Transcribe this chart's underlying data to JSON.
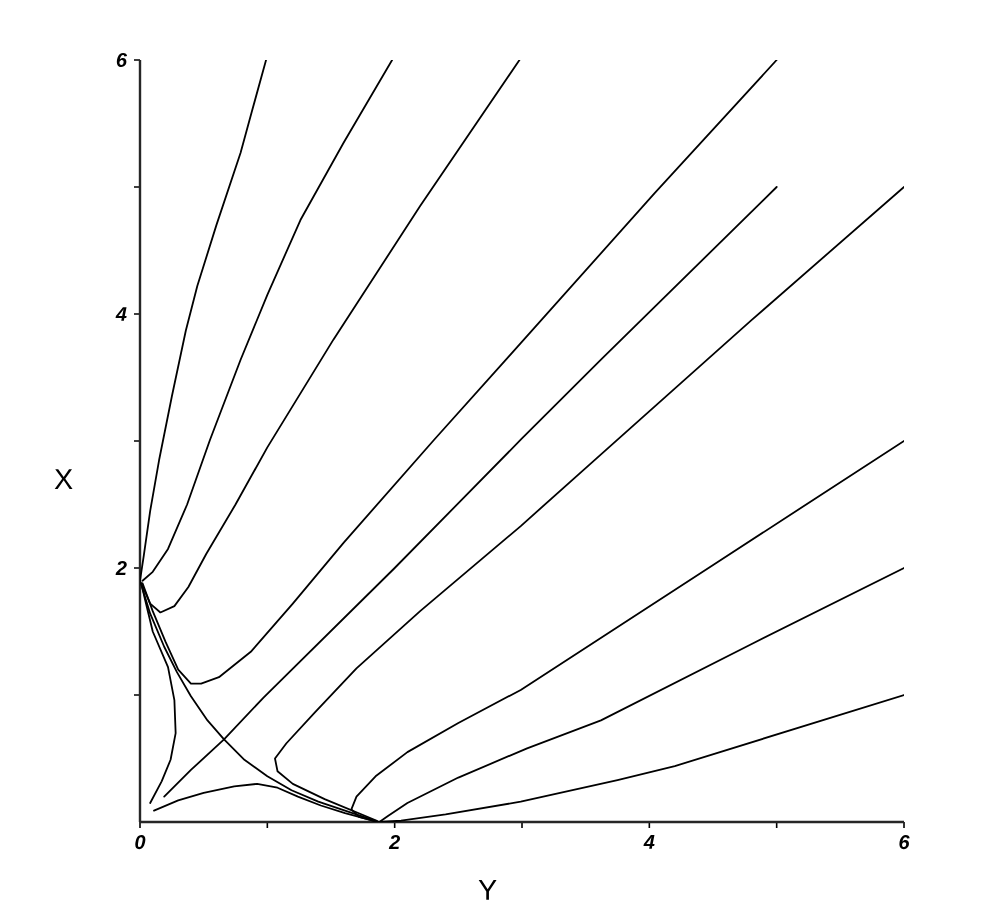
{
  "chart_data": {
    "type": "line",
    "xlabel": "Y",
    "ylabel": "X",
    "xlim": [
      0,
      6
    ],
    "ylim": [
      0,
      6
    ],
    "xticks": [
      0,
      {
        "value": 1,
        "label": null
      },
      2,
      {
        "value": 3,
        "label": null
      },
      4,
      {
        "value": 5,
        "label": null
      },
      6
    ],
    "yticks": [
      {
        "value": 1,
        "label": null
      },
      2,
      {
        "value": 3,
        "label": null
      },
      4,
      {
        "value": 5,
        "label": null
      },
      6
    ],
    "series": [
      {
        "color": "#000000",
        "x": [
          0.99,
          0.88,
          0.79,
          0.6,
          0.45,
          0.36,
          0.25,
          0.15,
          0.08,
          0.03,
          0.0,
          0.08,
          0.19,
          0.29,
          0.4,
          0.53,
          0.66,
          0.82,
          1.0,
          1.19,
          1.4,
          1.61,
          1.88,
          2.05,
          2.4,
          2.99,
          3.75,
          4.2,
          6.0
        ],
        "values": [
          6.0,
          5.6,
          5.27,
          4.7,
          4.22,
          3.87,
          3.35,
          2.85,
          2.45,
          2.1,
          1.9,
          1.64,
          1.38,
          1.18,
          0.99,
          0.8,
          0.65,
          0.49,
          0.36,
          0.25,
          0.16,
          0.09,
          0.0,
          0.01,
          0.06,
          0.16,
          0.33,
          0.44,
          1.0
        ]
      },
      {
        "color": "#000000",
        "x": [
          1.98,
          1.6,
          1.26,
          1.0,
          0.79,
          0.55,
          0.37,
          0.22,
          0.1,
          0.02
        ],
        "values": [
          6.0,
          5.35,
          4.74,
          4.15,
          3.64,
          3.01,
          2.5,
          2.15,
          1.97,
          1.9
        ]
      },
      {
        "color": "#000000",
        "x": [
          2.98,
          2.2,
          1.52,
          1.0,
          0.75,
          0.52,
          0.38,
          0.27,
          0.16,
          0.08,
          0.02
        ],
        "values": [
          6.0,
          4.85,
          3.8,
          2.95,
          2.5,
          2.11,
          1.85,
          1.7,
          1.65,
          1.72,
          1.86
        ]
      },
      {
        "color": "#000000",
        "x": [
          5.0,
          4.04,
          2.99,
          2.31,
          1.6,
          1.2,
          0.87,
          0.62,
          0.48,
          0.4,
          0.3,
          0.2,
          0.1,
          0.02
        ],
        "values": [
          6.0,
          4.95,
          3.77,
          3.01,
          2.2,
          1.72,
          1.34,
          1.14,
          1.09,
          1.09,
          1.2,
          1.42,
          1.66,
          1.88
        ]
      },
      {
        "color": "#000000",
        "x": [
          5.0,
          3.62,
          2.99,
          2.0,
          0.97,
          0.66,
          0.4,
          0.19
        ],
        "values": [
          5.0,
          3.64,
          3.01,
          2.0,
          0.98,
          0.65,
          0.41,
          0.2
        ]
      },
      {
        "color": "#000000",
        "x": [
          0.08,
          0.17,
          0.24,
          0.28,
          0.27,
          0.22,
          0.1,
          0.04,
          0.01
        ],
        "values": [
          0.15,
          0.32,
          0.49,
          0.7,
          0.96,
          1.22,
          1.5,
          1.75,
          1.88
        ]
      },
      {
        "color": "#000000",
        "x": [
          0.11,
          0.3,
          0.5,
          0.74,
          0.92,
          1.08,
          1.24,
          1.42,
          1.61,
          1.87
        ],
        "values": [
          0.09,
          0.17,
          0.23,
          0.28,
          0.3,
          0.27,
          0.2,
          0.13,
          0.07,
          0.0
        ]
      },
      {
        "color": "#000000",
        "x": [
          6.0,
          4.8,
          3.57,
          2.99,
          2.2,
          1.7,
          1.37,
          1.15,
          1.06,
          1.08,
          1.2,
          1.45,
          1.86
        ],
        "values": [
          5.0,
          3.95,
          2.85,
          2.33,
          1.66,
          1.21,
          0.86,
          0.62,
          0.5,
          0.4,
          0.3,
          0.18,
          0.01
        ]
      },
      {
        "color": "#000000",
        "x": [
          6.0,
          4.51,
          2.99,
          2.5,
          2.1,
          1.85,
          1.7,
          1.66,
          1.72,
          1.87
        ],
        "values": [
          3.0,
          2.03,
          1.04,
          0.78,
          0.55,
          0.36,
          0.2,
          0.1,
          0.04,
          0.0
        ]
      },
      {
        "color": "#000000",
        "x": [
          6.0,
          4.8,
          3.62,
          3.04,
          2.5,
          2.1,
          1.95,
          1.88
        ],
        "values": [
          2.0,
          1.4,
          0.8,
          0.58,
          0.35,
          0.15,
          0.05,
          0.0
        ]
      }
    ]
  }
}
